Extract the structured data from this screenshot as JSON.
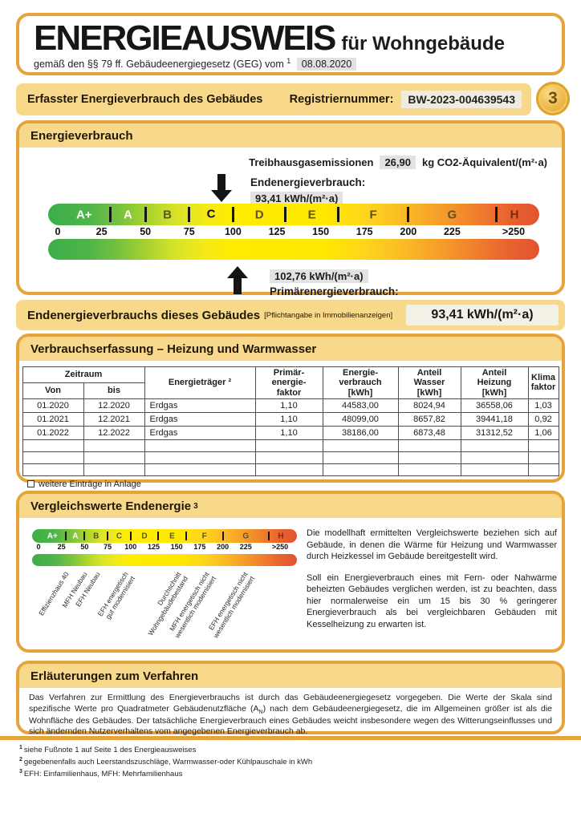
{
  "header": {
    "title": "ENERGIEAUSWEIS",
    "subtitle_suffix": "für Wohngebäude",
    "law_text": "gemäß den §§ 79 ff. Gebäudeenergiegesetz (GEG) vom",
    "footnote_ref": "1",
    "date": "08.08.2020"
  },
  "registration": {
    "label": "Erfasster Energieverbrauch des Gebäudes",
    "reg_label": "Registriernummer:",
    "reg_number": "BW-2023-004639543",
    "page_badge": "3"
  },
  "consumption_section": {
    "title": "Energieverbrauch",
    "ghg_label": "Treibhausgasemissionen",
    "ghg_value": "26,90",
    "ghg_unit": "kg CO2-Äquivalent/(m²·a)",
    "final_energy_label": "Endenergieverbrauch:",
    "final_energy_value": "93,41 kWh/(m²·a)",
    "primary_energy_value": "102,76 kWh/(m²·a)",
    "primary_energy_label": "Primärenergieverbrauch:"
  },
  "final_energy_bar": {
    "label": "Endenergieverbrauchs dieses Gebäudes",
    "note": "[Pflichtangabe in Immobilienanzeigen]",
    "value": "93,41 kWh/(m²·a)"
  },
  "table_section": {
    "title": "Verbrauchserfassung – Heizung und Warmwasser",
    "headers": {
      "zeitraum": "Zeitraum",
      "von": "Von",
      "bis": "bis",
      "energietraeger": "Energieträger ²",
      "primaerfaktor": "Primär-\nenergie-\nfaktor",
      "energieverbrauch": "Energie-\nverbrauch\n[kWh]",
      "anteil_wasser": "Anteil\nWasser\n[kWh]",
      "anteil_heizung": "Anteil\nHeizung\n[kWh]",
      "klimafaktor": "Klima\nfaktor"
    },
    "rows": [
      [
        "01.2020",
        "12.2020",
        "Erdgas",
        "1,10",
        "44583,00",
        "8024,94",
        "36558,06",
        "1,03"
      ],
      [
        "01.2021",
        "12.2021",
        "Erdgas",
        "1,10",
        "48099,00",
        "8657,82",
        "39441,18",
        "0,92"
      ],
      [
        "01.2022",
        "12.2022",
        "Erdgas",
        "1,10",
        "38186,00",
        "6873,48",
        "31312,52",
        "1,06"
      ]
    ],
    "empty_row_count": 3,
    "checkbox_label": "weitere Einträge in Anlage",
    "checkbox_checked": false
  },
  "comparison_section": {
    "title": "Vergleichswerte Endenergie",
    "sup": "3",
    "paragraphs": [
      "Die modellhaft ermittelten Vergleichswerte beziehen sich auf Gebäude, in denen die Wärme für Heizung und Warmwasser durch Heizkessel im Gebäude bereitgestellt wird.",
      "Soll ein Energieverbrauch eines mit Fern- oder Nahwärme beheizten Gebäudes verglichen werden, ist zu beachten, dass hier normalerweise ein um 15 bis 30 % geringerer Energieverbrauch als bei vergleichbaren Gebäuden mit Kesselheizung zu erwarten ist."
    ]
  },
  "procedure_section": {
    "title": "Erläuterungen zum Verfahren",
    "text_before_sub": "Das Verfahren zur Ermittlung des Energieverbrauchs ist durch das Gebäudeenergiegesetz vorgegeben. Die Werte der Skala sind spezifische Werte pro Quadratmeter Gebäudenutzfläche (A",
    "sub": "N",
    "text_after_sub": ") nach dem Gebäudeenergiegesetz, die im Allgemeinen größer ist als die Wohnfläche des Gebäudes. Der tatsächliche Energieverbrauch eines Gebäudes weicht insbesondere wegen des Witterungseinflusses und sich ändernden Nutzerverhaltens vom angegebenen Energieverbrauch ab."
  },
  "footnotes": [
    {
      "sup": "1",
      "text": "siehe Fußnote 1 auf Seite 1 des Energieausweises"
    },
    {
      "sup": "2",
      "text": "gegebenenfalls auch Leerstandszuschläge, Warmwasser-oder Kühlpauschale in kWh"
    },
    {
      "sup": "3",
      "text": "EFH: Einfamilienhaus, MFH: Mehrfamilienhaus"
    }
  ],
  "colors": {
    "frame_orange": "#e7a33b",
    "strip_gold": "#f8d98c",
    "chip_gray": "#e2e2e2",
    "scale_green": "#3dae49",
    "scale_yellow": "#ffe800",
    "scale_red": "#e25330"
  },
  "chart_data": [
    {
      "type": "scale",
      "title": "Energieverbrauch Skala",
      "unit": "kWh/(m²·a)",
      "axis_range": [
        0,
        250
      ],
      "ticks": [
        {
          "label": "0",
          "value": 0
        },
        {
          "label": "25",
          "value": 25
        },
        {
          "label": "50",
          "value": 50
        },
        {
          "label": "75",
          "value": 75
        },
        {
          "label": "100",
          "value": 100
        },
        {
          "label": "125",
          "value": 125
        },
        {
          "label": "150",
          "value": 150
        },
        {
          "label": "175",
          "value": 175
        },
        {
          "label": "200",
          "value": 200
        },
        {
          "label": "225",
          "value": 225
        },
        {
          "label": ">250",
          "value": 250,
          "shift": 1
        }
      ],
      "bands": [
        {
          "label": "A+",
          "from": 0,
          "to": 30,
          "letter_color": "#ffffff"
        },
        {
          "label": "A",
          "from": 30,
          "to": 50,
          "letter_color": "#ffffff"
        },
        {
          "label": "B",
          "from": 50,
          "to": 75,
          "letter_color": "#5d5327"
        },
        {
          "label": "C",
          "from": 75,
          "to": 100,
          "letter_color": "#5d5327"
        },
        {
          "label": "D",
          "from": 100,
          "to": 130,
          "letter_color": "#5d5327"
        },
        {
          "label": "E",
          "from": 130,
          "to": 160,
          "letter_color": "#5d5327"
        },
        {
          "label": "F",
          "from": 160,
          "to": 200,
          "letter_color": "#5d5327"
        },
        {
          "label": "G",
          "from": 200,
          "to": 250,
          "letter_color": "#5d5327"
        },
        {
          "label": "H",
          "from": 250,
          "to": null,
          "letter_color": "#7e2a10"
        }
      ],
      "rating": "C",
      "markers": [
        {
          "name": "Endenergieverbrauch",
          "value": 93.41,
          "direction": "down"
        },
        {
          "name": "Primärenergieverbrauch",
          "value": 102.76,
          "direction": "up"
        }
      ]
    },
    {
      "type": "scale",
      "title": "Vergleichswerte Endenergie",
      "axis_range": [
        0,
        250
      ],
      "ticks": [
        {
          "label": "0",
          "value": 0
        },
        {
          "label": "25",
          "value": 25
        },
        {
          "label": "50",
          "value": 50
        },
        {
          "label": "75",
          "value": 75
        },
        {
          "label": "100",
          "value": 100
        },
        {
          "label": "125",
          "value": 125
        },
        {
          "label": "150",
          "value": 150
        },
        {
          "label": "175",
          "value": 175
        },
        {
          "label": "200",
          "value": 200
        },
        {
          "label": "225",
          "value": 225
        },
        {
          "label": ">250",
          "value": 250,
          "shift": 1
        }
      ],
      "bands": [
        {
          "label": "A+",
          "from": 0,
          "to": 30,
          "letter_color": "#ffffff"
        },
        {
          "label": "A",
          "from": 30,
          "to": 50,
          "letter_color": "#ffffff"
        },
        {
          "label": "B",
          "from": 50,
          "to": 75,
          "letter_color": "#5d5327"
        },
        {
          "label": "C",
          "from": 75,
          "to": 100,
          "letter_color": "#5d5327"
        },
        {
          "label": "D",
          "from": 100,
          "to": 130,
          "letter_color": "#5d5327"
        },
        {
          "label": "E",
          "from": 130,
          "to": 160,
          "letter_color": "#5d5327"
        },
        {
          "label": "F",
          "from": 160,
          "to": 200,
          "letter_color": "#5d5327"
        },
        {
          "label": "G",
          "from": 200,
          "to": 250,
          "letter_color": "#5d5327"
        },
        {
          "label": "H",
          "from": 250,
          "to": null,
          "letter_color": "#7e2a10"
        }
      ],
      "reference_labels": [
        {
          "label": "Effizienzhaus 40",
          "value": 28
        },
        {
          "label": "MFH Neubau",
          "value": 48
        },
        {
          "label": "EFH Neubau",
          "value": 62
        },
        {
          "label": "EFH energetisch\ngut modernisiert",
          "value": 92
        },
        {
          "label": "Durchschnitt\nWohngebäudebestand",
          "value": 150
        },
        {
          "label": "MFH energetisch nicht\nwesentlich modernisiert",
          "value": 180
        },
        {
          "label": "EFH energetisch nicht\nwesentlich modernisiert",
          "value": 222
        }
      ]
    }
  ]
}
